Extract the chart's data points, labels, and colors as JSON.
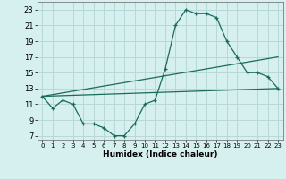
{
  "xlabel": "Humidex (Indice chaleur)",
  "x_ticks": [
    0,
    1,
    2,
    3,
    4,
    5,
    6,
    7,
    8,
    9,
    10,
    11,
    12,
    13,
    14,
    15,
    16,
    17,
    18,
    19,
    20,
    21,
    22,
    23
  ],
  "y_ticks": [
    7,
    9,
    11,
    13,
    15,
    17,
    19,
    21,
    23
  ],
  "xlim": [
    -0.5,
    23.5
  ],
  "ylim": [
    6.5,
    24.0
  ],
  "bg_color": "#d6efef",
  "grid_color": "#b8d8d8",
  "line_color": "#1a6b5a",
  "line1_x": [
    0,
    1,
    2,
    3,
    4,
    5,
    6,
    7,
    8,
    9,
    10,
    11,
    12,
    13,
    14,
    15,
    16,
    17,
    18,
    19,
    20,
    21,
    22,
    23
  ],
  "line1_y": [
    12.0,
    10.5,
    11.5,
    11.0,
    8.5,
    8.5,
    8.0,
    7.0,
    7.0,
    8.5,
    11.0,
    11.5,
    15.5,
    21.0,
    23.0,
    22.5,
    22.5,
    22.0,
    19.0,
    17.0,
    15.0,
    15.0,
    14.5,
    13.0
  ],
  "line2_x": [
    0,
    23
  ],
  "line2_y": [
    12.0,
    13.0
  ],
  "line3_x": [
    0,
    23
  ],
  "line3_y": [
    12.0,
    17.0
  ]
}
